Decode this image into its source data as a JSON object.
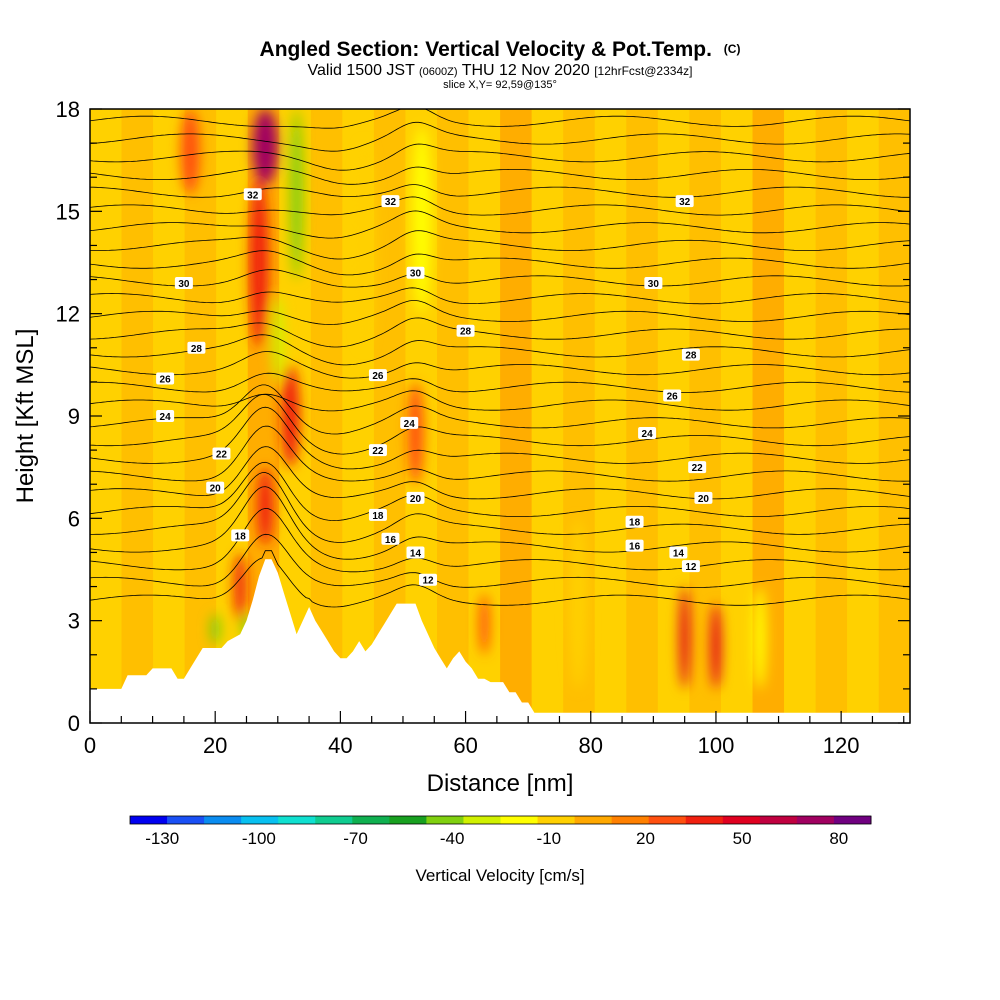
{
  "chart_data": {
    "type": "heatmap",
    "title": "Angled Section: Vertical Velocity & Pot.Temp.",
    "title_mark": "(C)",
    "subtitle_main_1": "Valid 1500 JST",
    "subtitle_small_1": "(0600Z)",
    "subtitle_main_2": "THU 12 Nov 2020",
    "subtitle_small_2": "[12hrFcst@2334z]",
    "slice_label": "slice X,Y= 92,59@135°",
    "xlabel": "Distance [nm]",
    "ylabel": "Height [Kft MSL]",
    "xlim": [
      0,
      131
    ],
    "ylim": [
      0,
      18
    ],
    "x_ticks": [
      0,
      20,
      40,
      60,
      80,
      100,
      120
    ],
    "y_ticks": [
      0,
      3,
      6,
      9,
      12,
      15,
      18
    ],
    "colorbar": {
      "label": "Vertical Velocity [cm/s]",
      "tick_values": [
        -130,
        -100,
        -70,
        -40,
        -10,
        20,
        50,
        80
      ],
      "range": [
        -140,
        90
      ],
      "colors": [
        "#0000f0",
        "#1a50f5",
        "#0a8cf0",
        "#08c0f0",
        "#10e0d0",
        "#10cc90",
        "#10b050",
        "#18a020",
        "#80d010",
        "#d0f000",
        "#ffff00",
        "#ffd000",
        "#ffa800",
        "#ff8000",
        "#ff5010",
        "#f02010",
        "#e00020",
        "#c00040",
        "#a00060",
        "#700080"
      ]
    },
    "ridgeline": [
      [
        0,
        1.0
      ],
      [
        5,
        1.0
      ],
      [
        6,
        1.4
      ],
      [
        9,
        1.4
      ],
      [
        10,
        1.6
      ],
      [
        13,
        1.6
      ],
      [
        14,
        1.3
      ],
      [
        15,
        1.3
      ],
      [
        16,
        1.6
      ],
      [
        17,
        1.9
      ],
      [
        18,
        2.2
      ],
      [
        21,
        2.2
      ],
      [
        22,
        2.4
      ],
      [
        24,
        2.6
      ],
      [
        25,
        3.0
      ],
      [
        26,
        3.6
      ],
      [
        27,
        4.3
      ],
      [
        28,
        4.8
      ],
      [
        29,
        4.8
      ],
      [
        30,
        4.4
      ],
      [
        31,
        3.8
      ],
      [
        32,
        3.2
      ],
      [
        33,
        2.6
      ],
      [
        34,
        3.0
      ],
      [
        35,
        3.4
      ],
      [
        36,
        3.0
      ],
      [
        37,
        2.7
      ],
      [
        38,
        2.4
      ],
      [
        39,
        2.1
      ],
      [
        40,
        1.9
      ],
      [
        41,
        1.9
      ],
      [
        42,
        2.1
      ],
      [
        43,
        2.4
      ],
      [
        44,
        2.1
      ],
      [
        45,
        2.3
      ],
      [
        46,
        2.6
      ],
      [
        47,
        2.9
      ],
      [
        48,
        3.2
      ],
      [
        49,
        3.5
      ],
      [
        52,
        3.5
      ],
      [
        53,
        3.0
      ],
      [
        54,
        2.6
      ],
      [
        55,
        2.2
      ],
      [
        56,
        1.9
      ],
      [
        57,
        1.6
      ],
      [
        58,
        1.9
      ],
      [
        59,
        2.1
      ],
      [
        60,
        1.8
      ],
      [
        61,
        1.6
      ],
      [
        62,
        1.3
      ],
      [
        63,
        1.3
      ],
      [
        64,
        1.2
      ],
      [
        66,
        1.2
      ],
      [
        67,
        0.9
      ],
      [
        68,
        0.9
      ],
      [
        69,
        0.6
      ],
      [
        70,
        0.6
      ],
      [
        71,
        0.3
      ],
      [
        131,
        0.3
      ]
    ],
    "vertical_velocity_features": [
      {
        "x": 28,
        "z0": 15.8,
        "z1": 18.0,
        "w": 70,
        "width": 4.0
      },
      {
        "x": 27,
        "z0": 11.0,
        "z1": 16.0,
        "w": 35,
        "width": 3.0
      },
      {
        "x": 32,
        "z0": 7.5,
        "z1": 10.5,
        "w": 40,
        "width": 3.0
      },
      {
        "x": 28,
        "z0": 5.2,
        "z1": 7.5,
        "w": 42,
        "width": 2.5
      },
      {
        "x": 16,
        "z0": 15.5,
        "z1": 18.0,
        "w": 30,
        "width": 3.0
      },
      {
        "x": 24,
        "z0": 3.0,
        "z1": 5.0,
        "w": 38,
        "width": 2.0
      },
      {
        "x": 95,
        "z0": 1.0,
        "z1": 4.0,
        "w": 55,
        "width": 1.5
      },
      {
        "x": 100,
        "z0": 1.0,
        "z1": 3.5,
        "w": 48,
        "width": 1.5
      },
      {
        "x": 63,
        "z0": 2.0,
        "z1": 3.8,
        "w": 30,
        "width": 1.5
      },
      {
        "x": 52,
        "z0": 7.0,
        "z1": 10.0,
        "w": 30,
        "width": 2.5
      },
      {
        "x": 33,
        "z0": 13.0,
        "z1": 18.0,
        "w": -45,
        "width": 2.0
      },
      {
        "x": 30,
        "z0": 10.0,
        "z1": 12.5,
        "w": -35,
        "width": 2.0
      },
      {
        "x": 20,
        "z0": 2.3,
        "z1": 3.2,
        "w": -45,
        "width": 1.5
      },
      {
        "x": 25,
        "z0": 2.5,
        "z1": 3.2,
        "w": -40,
        "width": 1.0
      },
      {
        "x": 53,
        "z0": 12.0,
        "z1": 17.5,
        "w": -25,
        "width": 3.0
      },
      {
        "x": 44,
        "z0": 11.0,
        "z1": 17.0,
        "w": -10,
        "width": 3.0
      },
      {
        "x": 78,
        "z0": 1.0,
        "z1": 6.0,
        "w": -10,
        "width": 3.0
      },
      {
        "x": 107,
        "z0": 1.0,
        "z1": 4.0,
        "w": -15,
        "width": 2.0
      }
    ],
    "contour_labels": [
      {
        "text": "32",
        "x": 26,
        "z": 15.5
      },
      {
        "text": "32",
        "x": 48,
        "z": 15.3
      },
      {
        "text": "32",
        "x": 95,
        "z": 15.3
      },
      {
        "text": "30",
        "x": 15,
        "z": 12.9
      },
      {
        "text": "30",
        "x": 52,
        "z": 13.2
      },
      {
        "text": "30",
        "x": 90,
        "z": 12.9
      },
      {
        "text": "28",
        "x": 17,
        "z": 11.0
      },
      {
        "text": "28",
        "x": 60,
        "z": 11.5
      },
      {
        "text": "28",
        "x": 96,
        "z": 10.8
      },
      {
        "text": "26",
        "x": 12,
        "z": 10.1
      },
      {
        "text": "26",
        "x": 46,
        "z": 10.2
      },
      {
        "text": "26",
        "x": 93,
        "z": 9.6
      },
      {
        "text": "24",
        "x": 12,
        "z": 9.0
      },
      {
        "text": "24",
        "x": 51,
        "z": 8.8
      },
      {
        "text": "24",
        "x": 89,
        "z": 8.5
      },
      {
        "text": "22",
        "x": 21,
        "z": 7.9
      },
      {
        "text": "22",
        "x": 46,
        "z": 8.0
      },
      {
        "text": "22",
        "x": 97,
        "z": 7.5
      },
      {
        "text": "20",
        "x": 20,
        "z": 6.9
      },
      {
        "text": "20",
        "x": 52,
        "z": 6.6
      },
      {
        "text": "20",
        "x": 98,
        "z": 6.6
      },
      {
        "text": "18",
        "x": 24,
        "z": 5.5
      },
      {
        "text": "18",
        "x": 46,
        "z": 6.1
      },
      {
        "text": "18",
        "x": 87,
        "z": 5.9
      },
      {
        "text": "16",
        "x": 48,
        "z": 5.4
      },
      {
        "text": "16",
        "x": 87,
        "z": 5.2
      },
      {
        "text": "14",
        "x": 52,
        "z": 5.0
      },
      {
        "text": "14",
        "x": 94,
        "z": 5.0
      },
      {
        "text": "12",
        "x": 54,
        "z": 4.2
      },
      {
        "text": "12",
        "x": 96,
        "z": 4.6
      }
    ]
  }
}
